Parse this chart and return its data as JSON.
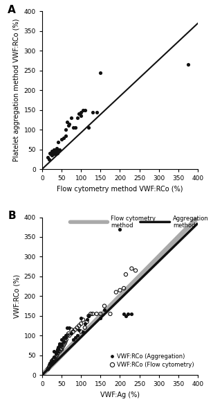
{
  "panel_A": {
    "title": "A",
    "xlabel": "Flow cytometry method VWF:RCo (%)",
    "ylabel": "Platelet aggregation method VWF:RCo (%)",
    "xlim": [
      0,
      400
    ],
    "ylim": [
      0,
      400
    ],
    "xticks": [
      0,
      50,
      100,
      150,
      200,
      250,
      300,
      350,
      400
    ],
    "yticks": [
      0,
      50,
      100,
      150,
      200,
      250,
      300,
      350,
      400
    ],
    "regression_line_x": [
      0,
      400
    ],
    "regression_line_y": [
      0,
      370
    ],
    "scatter_x": [
      15,
      18,
      20,
      22,
      25,
      25,
      28,
      28,
      30,
      30,
      32,
      35,
      35,
      35,
      38,
      40,
      40,
      42,
      45,
      50,
      55,
      60,
      60,
      65,
      68,
      70,
      75,
      80,
      85,
      90,
      95,
      100,
      100,
      105,
      110,
      120,
      130,
      140,
      150,
      375
    ],
    "scatter_y": [
      30,
      25,
      40,
      38,
      35,
      45,
      40,
      42,
      50,
      38,
      42,
      38,
      40,
      48,
      52,
      40,
      45,
      68,
      50,
      75,
      80,
      85,
      100,
      120,
      110,
      115,
      130,
      105,
      105,
      130,
      140,
      135,
      145,
      150,
      150,
      105,
      145,
      145,
      245,
      265
    ]
  },
  "panel_B": {
    "title": "B",
    "xlabel": "VWF:Ag (%)",
    "ylabel": "VWF:RCo (%)",
    "xlim": [
      0,
      400
    ],
    "ylim": [
      0,
      400
    ],
    "xticks": [
      0,
      50,
      100,
      150,
      200,
      250,
      300,
      350,
      400
    ],
    "yticks": [
      0,
      50,
      100,
      150,
      200,
      250,
      300,
      350,
      400
    ],
    "flow_line_x": [
      0,
      400
    ],
    "flow_line_y": [
      0,
      400
    ],
    "agg_line_x": [
      0,
      400
    ],
    "agg_line_y": [
      0,
      385
    ],
    "agg_scatter_x": [
      20,
      25,
      30,
      30,
      35,
      38,
      40,
      40,
      42,
      45,
      45,
      50,
      50,
      50,
      55,
      55,
      60,
      60,
      65,
      70,
      75,
      80,
      85,
      90,
      95,
      100,
      105,
      110,
      115,
      120,
      150,
      160,
      200,
      210,
      215,
      220,
      230
    ],
    "agg_scatter_y": [
      30,
      35,
      45,
      60,
      55,
      60,
      60,
      65,
      70,
      75,
      80,
      75,
      80,
      90,
      85,
      95,
      95,
      100,
      120,
      120,
      105,
      90,
      95,
      100,
      115,
      145,
      110,
      130,
      140,
      150,
      145,
      165,
      370,
      155,
      150,
      155,
      155
    ],
    "flow_scatter_x": [
      15,
      18,
      20,
      22,
      25,
      28,
      30,
      32,
      35,
      38,
      40,
      42,
      45,
      48,
      50,
      52,
      55,
      58,
      60,
      62,
      65,
      68,
      70,
      75,
      80,
      85,
      90,
      95,
      100,
      100,
      105,
      110,
      115,
      120,
      125,
      130,
      140,
      150,
      160,
      175,
      190,
      200,
      210,
      215,
      230,
      240
    ],
    "flow_scatter_y": [
      15,
      20,
      25,
      28,
      35,
      38,
      40,
      42,
      45,
      50,
      55,
      60,
      60,
      65,
      65,
      70,
      75,
      80,
      85,
      90,
      100,
      105,
      100,
      115,
      110,
      115,
      120,
      125,
      110,
      130,
      140,
      120,
      135,
      150,
      155,
      155,
      155,
      155,
      175,
      155,
      210,
      215,
      220,
      255,
      270,
      265
    ],
    "legend_agg_label": "VWF:RCo (Aggregation)",
    "legend_flow_label": "VWF:RCo (Flow cytometry)",
    "legend_flow_line_label": "Flow cytometry\nmethod",
    "legend_agg_line_label": "Aggregation\nmethod"
  },
  "flow_line_color": "#aaaaaa",
  "agg_line_color": "#111111",
  "scatter_color": "#111111",
  "bg_color": "#ffffff"
}
